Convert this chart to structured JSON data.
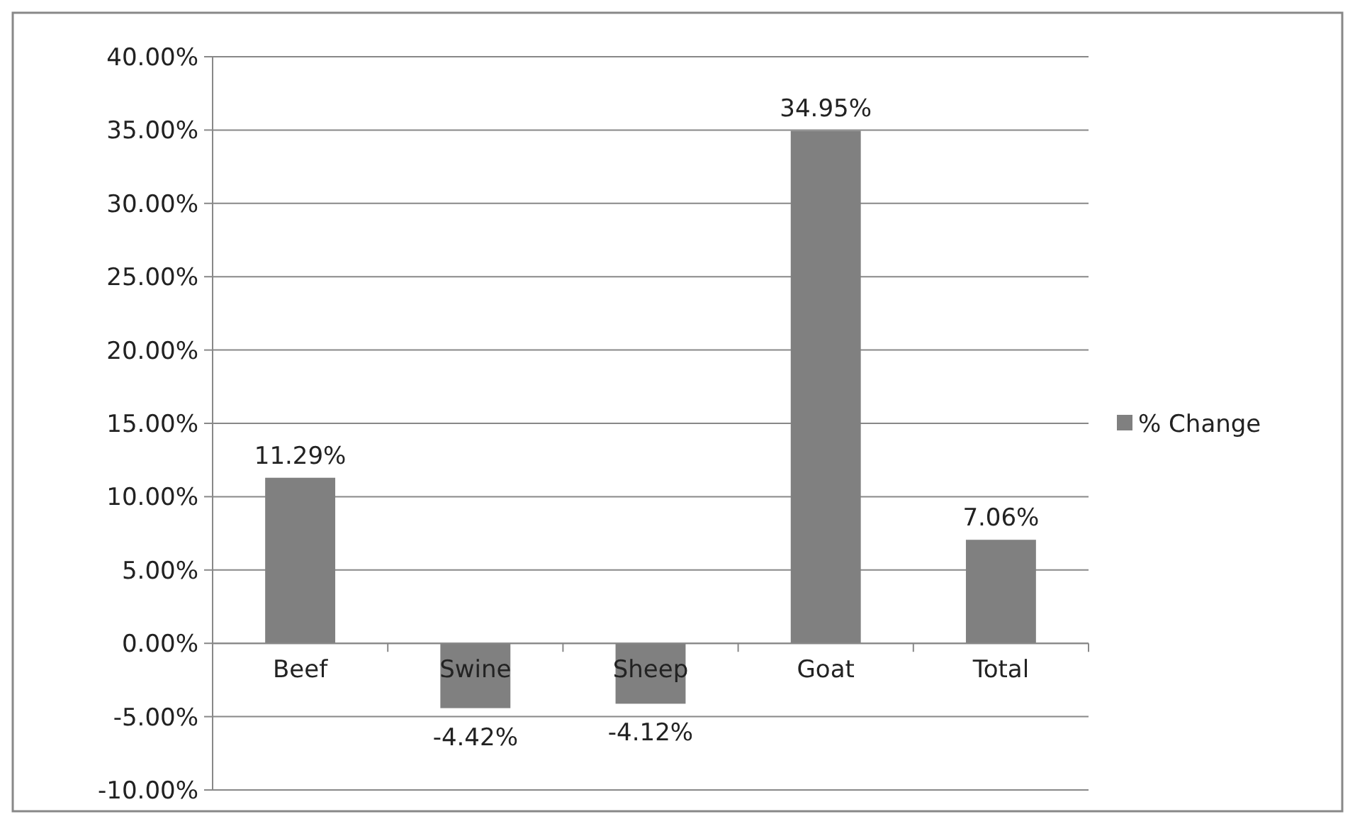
{
  "chart_data": {
    "type": "bar",
    "categories": [
      "Beef",
      "Swine",
      "Sheep",
      "Goat",
      "Total"
    ],
    "series": [
      {
        "name": "% Change",
        "color": "#808080",
        "values": [
          11.29,
          -4.42,
          -4.12,
          34.95,
          7.06
        ],
        "value_labels": [
          "11.29%",
          "-4.42%",
          "-4.12%",
          "34.95%",
          "7.06%"
        ]
      }
    ],
    "ylim": [
      -10,
      40
    ],
    "yticks": [
      {
        "value": -10,
        "label": "-10.00%"
      },
      {
        "value": -5,
        "label": "-5.00%"
      },
      {
        "value": 0,
        "label": "0.00%"
      },
      {
        "value": 5,
        "label": "5.00%"
      },
      {
        "value": 10,
        "label": "10.00%"
      },
      {
        "value": 15,
        "label": "15.00%"
      },
      {
        "value": 20,
        "label": "20.00%"
      },
      {
        "value": 25,
        "label": "25.00%"
      },
      {
        "value": 30,
        "label": "30.00%"
      },
      {
        "value": 35,
        "label": "35.00%"
      },
      {
        "value": 40,
        "label": "40.00%"
      }
    ],
    "grid": "y",
    "legend": "right"
  }
}
